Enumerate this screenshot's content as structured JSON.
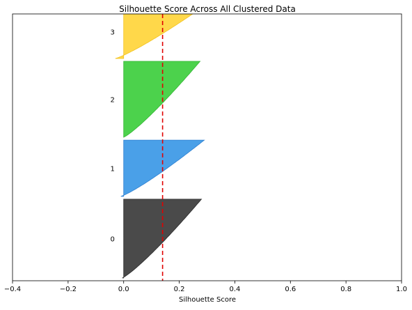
{
  "chart_data": {
    "type": "area",
    "title": "Silhouette Score Across All Clustered Data",
    "xlabel": "Silhouette Score",
    "ylabel": "",
    "xlim": [
      -0.4,
      1.0
    ],
    "x_ticks": [
      "−0.4",
      "−0.2",
      "0.0",
      "0.2",
      "0.4",
      "0.6",
      "0.8",
      "1.0"
    ],
    "x_tick_values": [
      -0.4,
      -0.2,
      0.0,
      0.2,
      0.4,
      0.6,
      0.8,
      1.0
    ],
    "average_silhouette_score": 0.14,
    "grid": false,
    "clusters": [
      {
        "label": "0",
        "color": "#4a4a4a",
        "edge": "#2b2b2b",
        "size": 280,
        "min": -0.005,
        "max": 0.28
      },
      {
        "label": "1",
        "color": "#4aa0e8",
        "edge": "#2e7fd0",
        "size": 200,
        "min": -0.01,
        "max": 0.29
      },
      {
        "label": "2",
        "color": "#4cd24c",
        "edge": "#33b533",
        "size": 270,
        "min": 0.0,
        "max": 0.275
      },
      {
        "label": "3",
        "color": "#ffd84a",
        "edge": "#f2c21f",
        "size": 190,
        "min": -0.03,
        "max": 0.295
      }
    ],
    "reference_line": {
      "color": "#e00000",
      "style": "dashed"
    }
  }
}
